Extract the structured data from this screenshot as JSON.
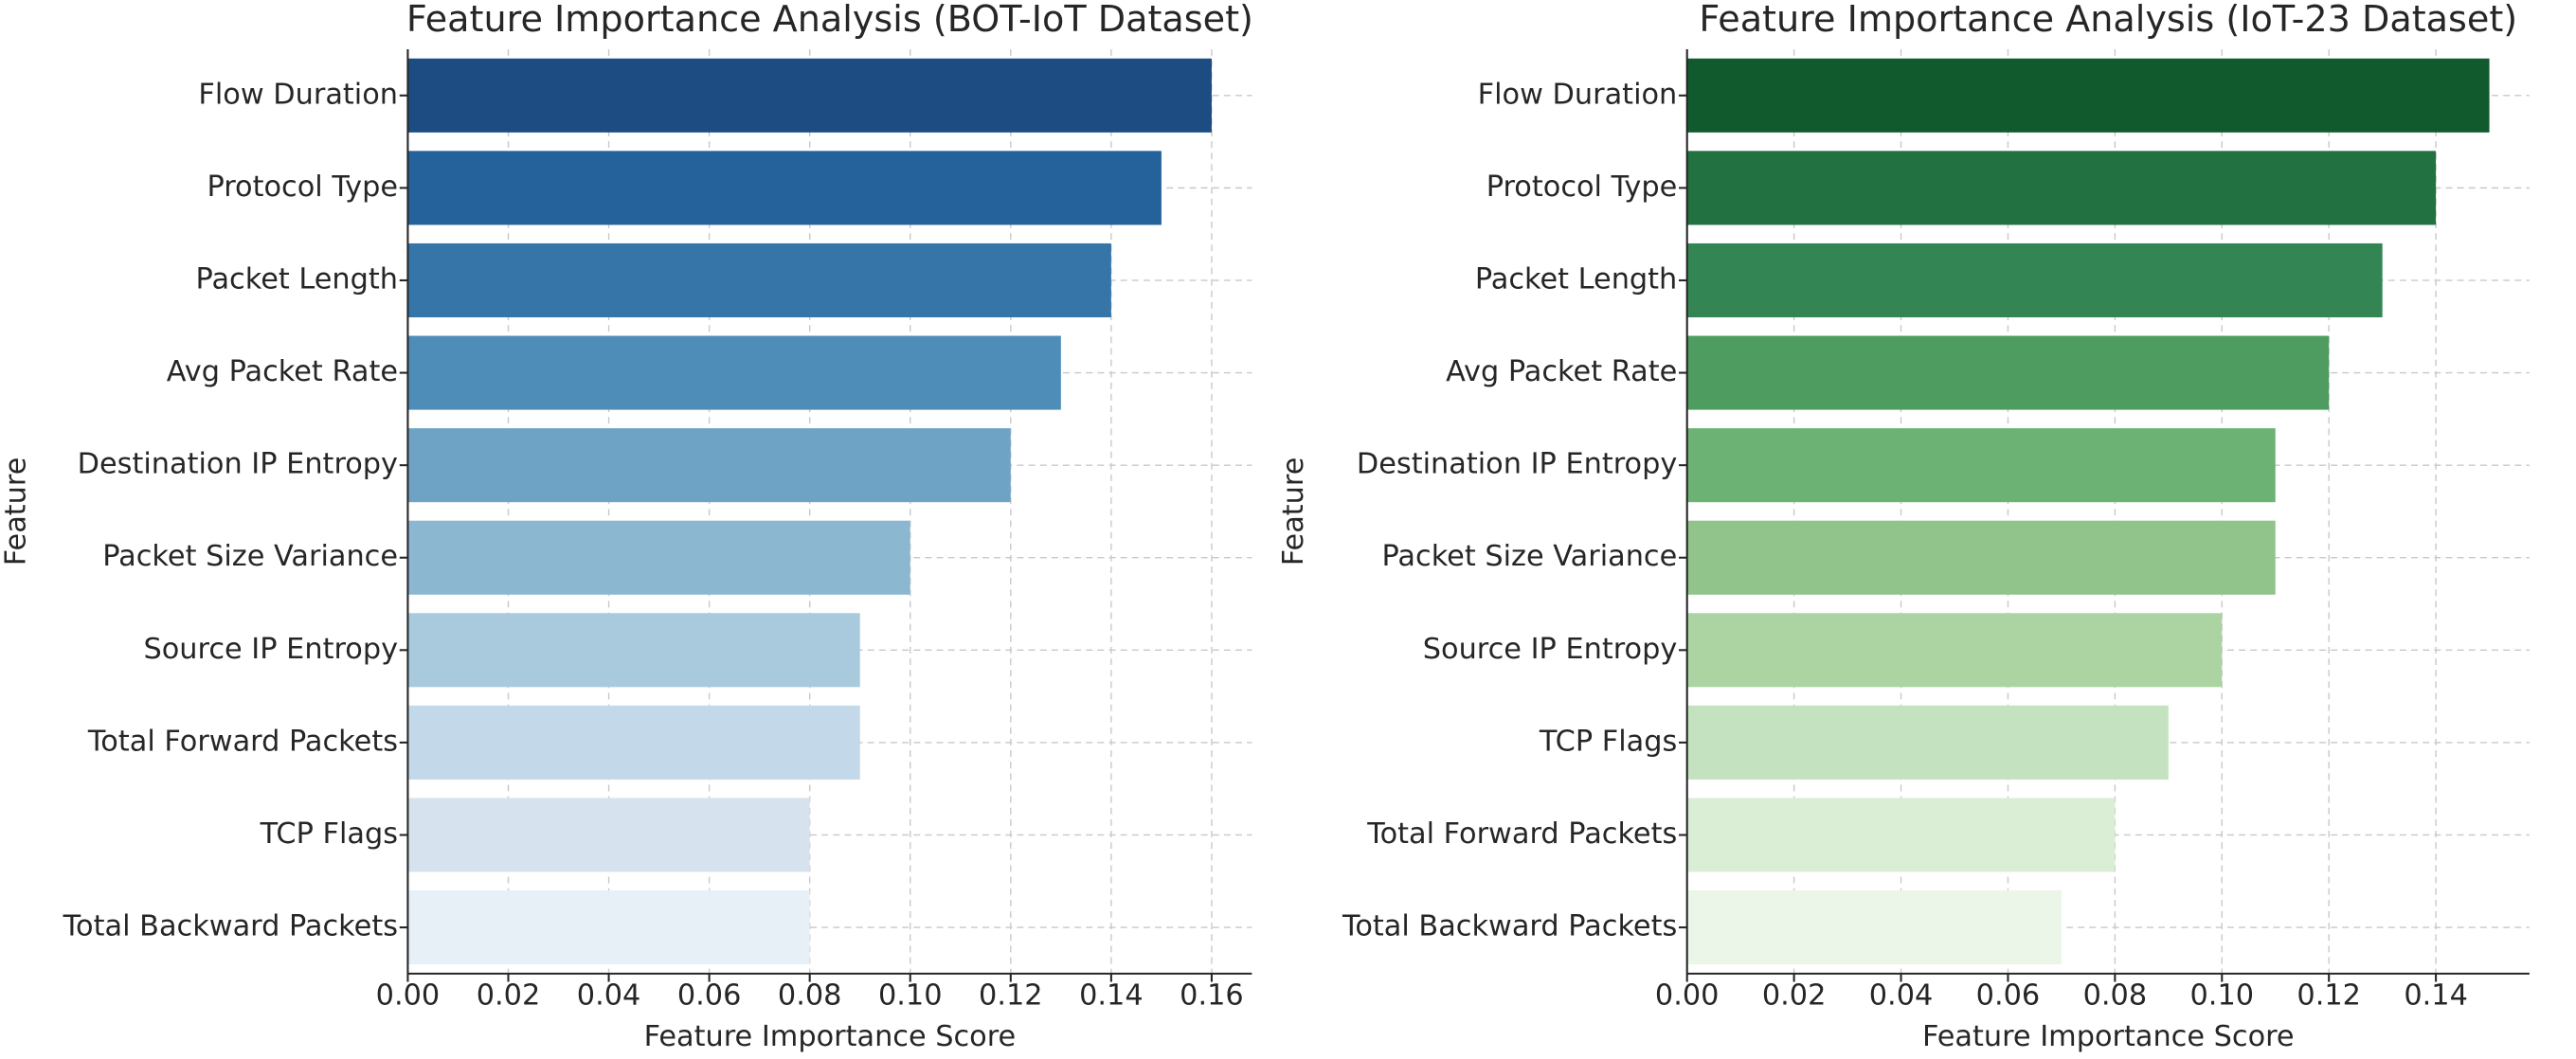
{
  "chart_data": [
    {
      "type": "barh",
      "title": "Feature Importance Analysis (BOT-IoT Dataset)",
      "x_label": "Feature Importance Score",
      "y_label": "Feature",
      "categories": [
        "Flow Duration",
        "Protocol Type",
        "Packet Length",
        "Avg Packet Rate",
        "Destination IP Entropy",
        "Packet Size Variance",
        "Source IP Entropy",
        "Total Forward Packets",
        "TCP Flags",
        "Total Backward Packets"
      ],
      "values": [
        0.16,
        0.15,
        0.14,
        0.13,
        0.12,
        0.1,
        0.09,
        0.09,
        0.08,
        0.08
      ],
      "colors": [
        "#1c4c81",
        "#25629c",
        "#3575a8",
        "#4f8db9",
        "#6fa3c6",
        "#8bb7d1",
        "#a9c9dd",
        "#c3d8e8",
        "#d6e3ef",
        "#e7eff7"
      ],
      "xlim": [
        0,
        0.168
      ],
      "xticks": [
        {
          "value": 0,
          "label": "0.00"
        },
        {
          "value": 0.02,
          "label": "0.02"
        },
        {
          "value": 0.04,
          "label": "0.04"
        },
        {
          "value": 0.06,
          "label": "0.06"
        },
        {
          "value": 0.08,
          "label": "0.08"
        },
        {
          "value": 0.1,
          "label": "0.10"
        },
        {
          "value": 0.12,
          "label": "0.12"
        },
        {
          "value": 0.14,
          "label": "0.14"
        },
        {
          "value": 0.16,
          "label": "0.16"
        }
      ],
      "grid": true
    },
    {
      "type": "barh",
      "title": "Feature Importance Analysis (IoT-23 Dataset)",
      "x_label": "Feature Importance Score",
      "y_label": "Feature",
      "categories": [
        "Flow Duration",
        "Protocol Type",
        "Packet Length",
        "Avg Packet Rate",
        "Destination IP Entropy",
        "Packet Size Variance",
        "Source IP Entropy",
        "TCP Flags",
        "Total Forward Packets",
        "Total Backward Packets"
      ],
      "values": [
        0.15,
        0.14,
        0.13,
        0.12,
        0.11,
        0.11,
        0.1,
        0.09,
        0.08,
        0.07
      ],
      "colors": [
        "#115a2e",
        "#217141",
        "#338553",
        "#4e9c60",
        "#6cb274",
        "#90c48b",
        "#acd4a3",
        "#c4e2bf",
        "#d9eed5",
        "#ebf6e8"
      ],
      "xlim": [
        0,
        0.1575
      ],
      "xticks": [
        {
          "value": 0,
          "label": "0.00"
        },
        {
          "value": 0.02,
          "label": "0.02"
        },
        {
          "value": 0.04,
          "label": "0.04"
        },
        {
          "value": 0.06,
          "label": "0.06"
        },
        {
          "value": 0.08,
          "label": "0.08"
        },
        {
          "value": 0.1,
          "label": "0.10"
        },
        {
          "value": 0.12,
          "label": "0.12"
        },
        {
          "value": 0.14,
          "label": "0.14"
        }
      ],
      "grid": true
    }
  ]
}
